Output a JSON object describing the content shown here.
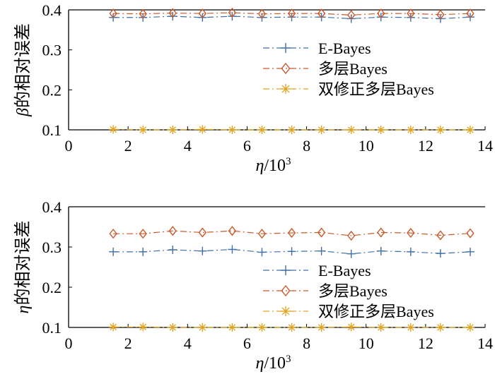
{
  "chart_data": [
    {
      "type": "line",
      "x": [
        1.5,
        2.5,
        3.5,
        4.5,
        5.5,
        6.5,
        7.5,
        8.5,
        9.5,
        10.5,
        11.5,
        12.5,
        13.5
      ],
      "xlim": [
        0,
        14
      ],
      "ylim": [
        0.1,
        0.4
      ],
      "xticks": [
        "0",
        "2",
        "4",
        "6",
        "8",
        "10",
        "12",
        "14"
      ],
      "yticks": [
        "0.1",
        "0.2",
        "0.3",
        "0.4"
      ],
      "xlabel_prefix": "η/10",
      "xlabel_sup": "3",
      "ylabel": "β的相对误差",
      "legend_position": "right",
      "grid": false,
      "series": [
        {
          "name": "E-Bayes",
          "color": "#3f6fa8",
          "marker": "plus",
          "values": [
            0.381,
            0.381,
            0.384,
            0.381,
            0.384,
            0.381,
            0.382,
            0.382,
            0.378,
            0.382,
            0.381,
            0.378,
            0.382
          ]
        },
        {
          "name": "多层Bayes",
          "color": "#c9592b",
          "marker": "diamond",
          "values": [
            0.391,
            0.39,
            0.392,
            0.391,
            0.393,
            0.39,
            0.391,
            0.391,
            0.387,
            0.391,
            0.391,
            0.388,
            0.391
          ]
        },
        {
          "name": "双修正多层Bayes",
          "color": "#e3a21a",
          "marker": "star",
          "values": [
            0.101,
            0.1,
            0.1,
            0.101,
            0.1,
            0.1,
            0.1,
            0.1,
            0.1,
            0.1,
            0.1,
            0.1,
            0.1
          ]
        }
      ]
    },
    {
      "type": "line",
      "x": [
        1.5,
        2.5,
        3.5,
        4.5,
        5.5,
        6.5,
        7.5,
        8.5,
        9.5,
        10.5,
        11.5,
        12.5,
        13.5
      ],
      "xlim": [
        0,
        14
      ],
      "ylim": [
        0.1,
        0.4
      ],
      "xticks": [
        "0",
        "2",
        "4",
        "6",
        "8",
        "10",
        "12",
        "14"
      ],
      "yticks": [
        "0.1",
        "0.2",
        "0.3",
        "0.4"
      ],
      "xlabel_prefix": "η/10",
      "xlabel_sup": "3",
      "ylabel": "η的相对误差",
      "legend_position": "right",
      "grid": false,
      "series": [
        {
          "name": "E-Bayes",
          "color": "#3f6fa8",
          "marker": "plus",
          "values": [
            0.288,
            0.288,
            0.293,
            0.29,
            0.294,
            0.287,
            0.289,
            0.29,
            0.283,
            0.29,
            0.288,
            0.284,
            0.288
          ]
        },
        {
          "name": "多层Bayes",
          "color": "#c9592b",
          "marker": "diamond",
          "values": [
            0.333,
            0.333,
            0.34,
            0.336,
            0.34,
            0.333,
            0.335,
            0.336,
            0.328,
            0.336,
            0.335,
            0.329,
            0.334
          ]
        },
        {
          "name": "双修正多层Bayes",
          "color": "#e3a21a",
          "marker": "star",
          "values": [
            0.101,
            0.101,
            0.1,
            0.1,
            0.1,
            0.1,
            0.1,
            0.1,
            0.101,
            0.1,
            0.1,
            0.1,
            0.1
          ]
        }
      ]
    }
  ]
}
